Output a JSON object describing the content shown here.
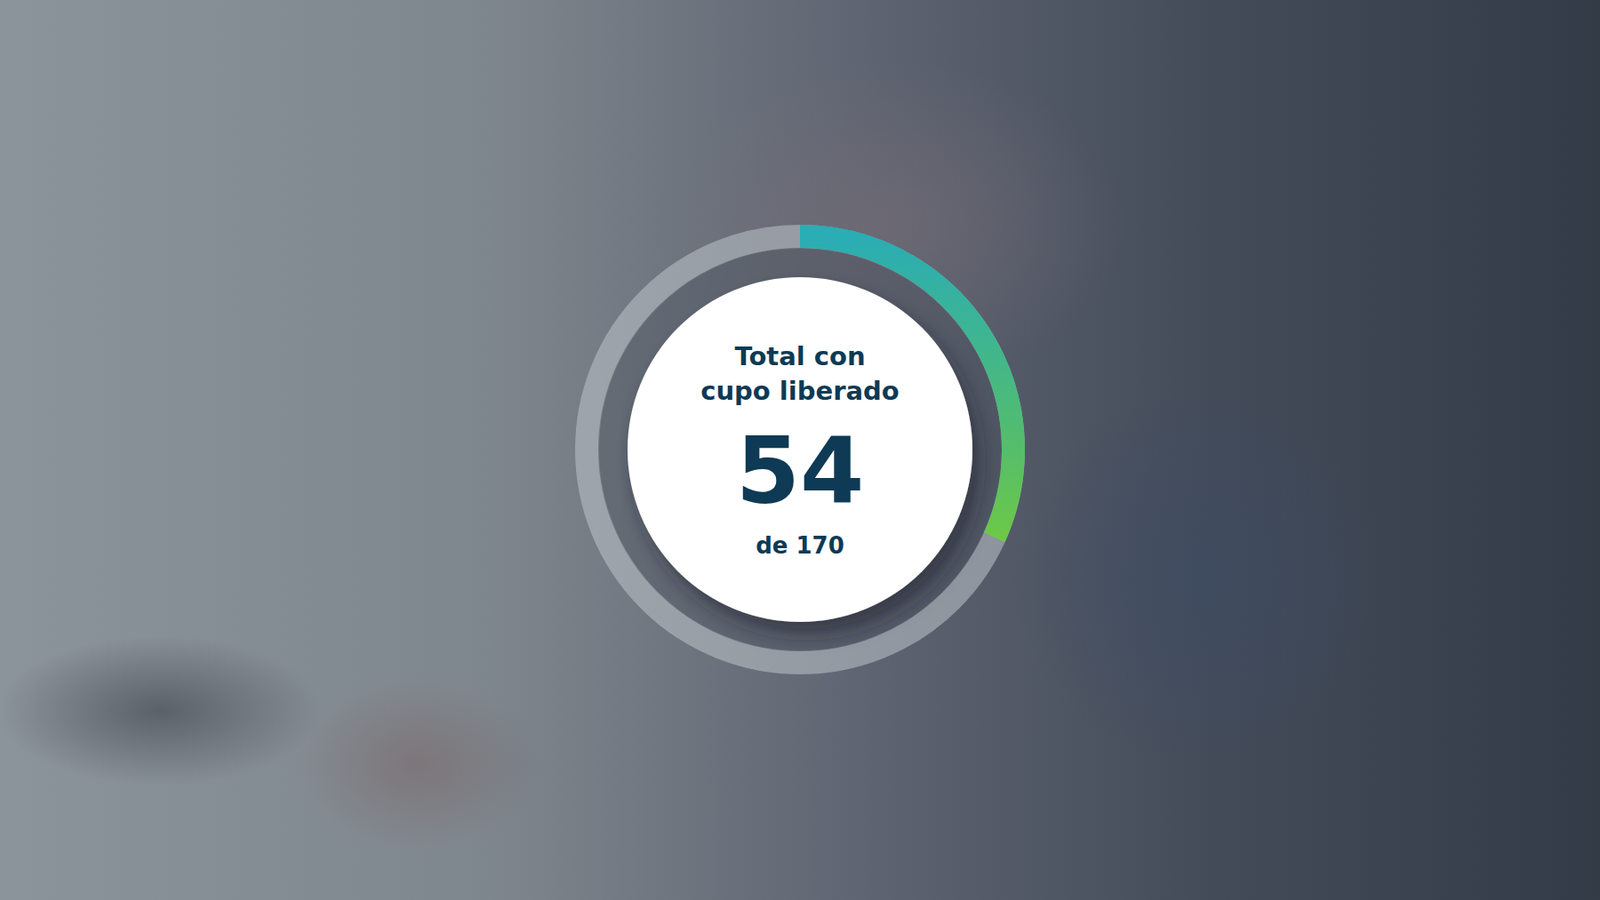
{
  "chart_data": {
    "type": "progress_ring",
    "title": [
      "Total con",
      "cupo liberado"
    ],
    "value": 54,
    "max": {
      "value": 170,
      "label": "de 170"
    }
  }
}
